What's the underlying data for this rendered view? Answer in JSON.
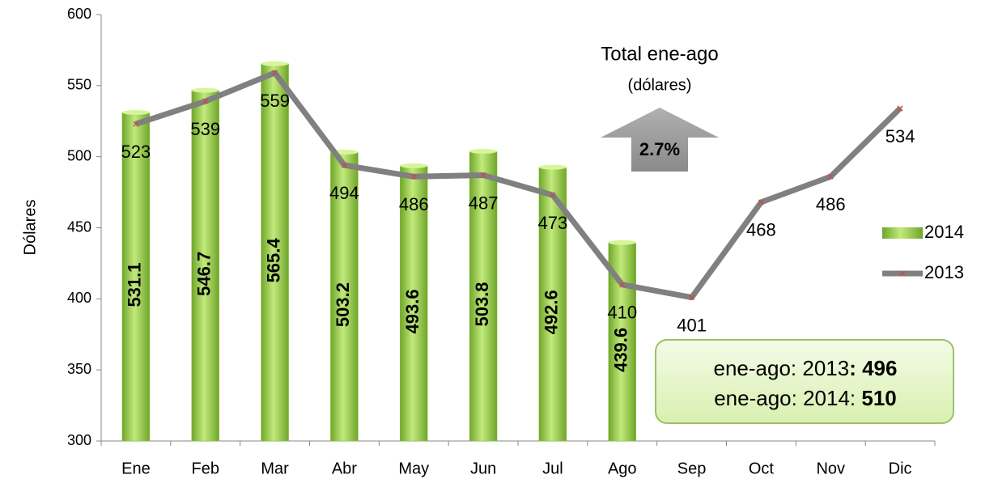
{
  "chart_data": {
    "type": "bar_line",
    "y_label": "Dólares",
    "categories": [
      "Ene",
      "Feb",
      "Mar",
      "Abr",
      "May",
      "Jun",
      "Jul",
      "Ago",
      "Sep",
      "Oct",
      "Nov",
      "Dic"
    ],
    "series": [
      {
        "name": "2014",
        "type": "bar",
        "color": "#8cc63f",
        "values": [
          531.1,
          546.7,
          565.4,
          503.2,
          493.6,
          503.8,
          492.6,
          439.6,
          null,
          null,
          null,
          null
        ]
      },
      {
        "name": "2013",
        "type": "line",
        "color": "#808080",
        "values": [
          523,
          539,
          559,
          494,
          486,
          487,
          473,
          410,
          401,
          468,
          486,
          534
        ]
      }
    ],
    "ylim": [
      300,
      600
    ],
    "yticks": [
      300,
      350,
      400,
      450,
      500,
      550,
      600
    ],
    "annotations": {
      "arrow_title": "Total ene-ago",
      "arrow_subtitle": "(dólares)",
      "arrow_label": "2.7%",
      "summary": [
        [
          "ene-ago: 2013",
          ": 496"
        ],
        [
          "ene-ago: 2014: ",
          "510"
        ]
      ]
    }
  }
}
